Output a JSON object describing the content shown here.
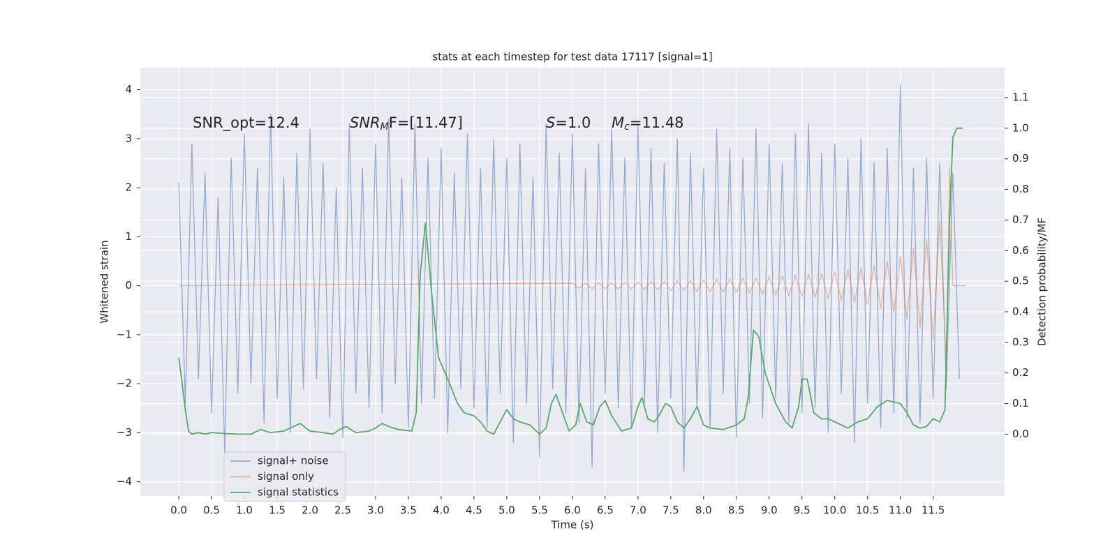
{
  "chart_data": {
    "type": "line",
    "title": "stats at each timestep for test data 17117 [signal=1]",
    "xlabel": "Time (s)",
    "ylabel": "Whitened strain",
    "y2label": "Detection probability/MF",
    "annotations": [
      {
        "text": "SNR_opt=12.4"
      },
      {
        "italic": "SNR",
        "sub": "M",
        "tail": "F=[11.47]"
      },
      {
        "italic": "S",
        "tail": "=1.0"
      },
      {
        "italic": "M",
        "sub": "c",
        "tail": "=11.48"
      }
    ],
    "xlim": [
      -0.586,
      12.589
    ],
    "ylim": [
      -4.29,
      4.45
    ],
    "y2lim": [
      -0.202,
      1.198
    ],
    "xticks": [
      {
        "value": 0,
        "label": "0.0"
      },
      0.5,
      {
        "value": 1,
        "label": "1.0"
      },
      1.5,
      {
        "value": 2,
        "label": "2.0"
      },
      2.5,
      {
        "value": 3,
        "label": "3.0"
      },
      3.5,
      {
        "value": 4,
        "label": "4.0"
      },
      4.5,
      {
        "value": 5,
        "label": "5.0"
      },
      5.5,
      {
        "value": 6,
        "label": "6.0"
      },
      6.5,
      {
        "value": 7,
        "label": "7.0"
      },
      7.5,
      {
        "value": 8,
        "label": "8.0"
      },
      8.5,
      {
        "value": 9,
        "label": "9.0"
      },
      9.5,
      {
        "value": 10,
        "label": "10.0"
      },
      10.5,
      {
        "value": 11,
        "label": "11.0"
      },
      11.5
    ],
    "yticks": [
      {
        "value": -4,
        "label": "−4"
      },
      {
        "value": -3,
        "label": "−3"
      },
      {
        "value": -2,
        "label": "−2"
      },
      {
        "value": -1,
        "label": "−1"
      },
      0,
      1,
      2,
      3,
      4
    ],
    "y2ticks": [
      {
        "value": 0,
        "label": "0.0"
      },
      0.1,
      0.2,
      0.3,
      0.4,
      0.5,
      0.6,
      0.7,
      0.8,
      0.9,
      {
        "value": 1,
        "label": "1.0"
      },
      1.1
    ],
    "grid": true,
    "legend": "lower left",
    "series": [
      {
        "name": "signal+ noise",
        "color": "#4c72b0",
        "axis": "y",
        "x": [
          0.0,
          0.1,
          0.2,
          0.3,
          0.4,
          0.5,
          0.6,
          0.7,
          0.8,
          0.9,
          1.0,
          1.1,
          1.2,
          1.3,
          1.4,
          1.5,
          1.6,
          1.7,
          1.8,
          1.9,
          2.0,
          2.1,
          2.2,
          2.3,
          2.4,
          2.5,
          2.6,
          2.7,
          2.8,
          2.9,
          3.0,
          3.1,
          3.2,
          3.3,
          3.4,
          3.5,
          3.6,
          3.7,
          3.8,
          3.9,
          4.0,
          4.1,
          4.2,
          4.3,
          4.4,
          4.5,
          4.6,
          4.7,
          4.8,
          4.9,
          5.0,
          5.1,
          5.2,
          5.3,
          5.4,
          5.5,
          5.6,
          5.7,
          5.8,
          5.9,
          6.0,
          6.1,
          6.2,
          6.3,
          6.4,
          6.5,
          6.6,
          6.7,
          6.8,
          6.9,
          7.0,
          7.1,
          7.2,
          7.3,
          7.4,
          7.5,
          7.6,
          7.7,
          7.8,
          7.9,
          8.0,
          8.1,
          8.2,
          8.3,
          8.4,
          8.5,
          8.6,
          8.7,
          8.8,
          8.9,
          9.0,
          9.1,
          9.2,
          9.3,
          9.4,
          9.5,
          9.6,
          9.7,
          9.8,
          9.9,
          10.0,
          10.1,
          10.2,
          10.3,
          10.4,
          10.5,
          10.6,
          10.7,
          10.8,
          10.9,
          11.0,
          11.1,
          11.2,
          11.3,
          11.4,
          11.5,
          11.6,
          11.7,
          11.8,
          11.9
        ],
        "values": [
          2.1,
          -2.4,
          2.9,
          -1.9,
          2.3,
          -2.6,
          1.8,
          -3.4,
          2.6,
          -2.2,
          3.1,
          -2.0,
          2.4,
          -2.8,
          3.5,
          -2.3,
          2.2,
          -3.0,
          2.7,
          -2.1,
          3.2,
          -1.9,
          2.5,
          -2.7,
          2.0,
          -3.1,
          3.3,
          -2.2,
          2.4,
          -2.5,
          2.9,
          -2.6,
          3.4,
          -2.0,
          2.2,
          -2.9,
          3.3,
          -2.4,
          2.6,
          -2.3,
          2.8,
          -3.0,
          2.3,
          -2.1,
          3.1,
          -2.5,
          2.4,
          -2.9,
          3.0,
          -2.2,
          2.6,
          -3.2,
          2.9,
          -2.4,
          2.2,
          -3.5,
          3.3,
          -2.1,
          2.7,
          -2.6,
          3.1,
          -2.8,
          2.4,
          -3.7,
          2.9,
          -2.2,
          3.2,
          -2.5,
          2.6,
          -2.9,
          3.3,
          -2.4,
          2.8,
          -3.0,
          2.5,
          -2.3,
          3.0,
          -3.8,
          2.7,
          -2.5,
          2.4,
          -2.9,
          3.2,
          -2.2,
          2.8,
          -3.1,
          2.6,
          -2.4,
          3.2,
          -2.7,
          2.9,
          -2.3,
          2.5,
          -2.8,
          3.1,
          -2.6,
          3.3,
          -2.5,
          2.7,
          -3.0,
          2.9,
          -2.2,
          2.6,
          -3.2,
          3.0,
          -2.4,
          2.5,
          -2.9,
          2.8,
          -2.6,
          4.1,
          -2.7,
          2.4,
          -2.8,
          2.6,
          -2.3,
          2.5,
          -2.1,
          2.3,
          -1.9
        ]
      },
      {
        "name": "signal only",
        "color": "#dd8452",
        "axis": "y",
        "x": [
          0.0,
          6.0,
          6.1,
          6.2,
          6.3,
          6.4,
          6.5,
          6.6,
          6.7,
          6.8,
          6.9,
          7.0,
          7.1,
          7.2,
          7.3,
          7.4,
          7.5,
          7.6,
          7.7,
          7.8,
          7.9,
          8.0,
          8.1,
          8.2,
          8.3,
          8.4,
          8.5,
          8.6,
          8.7,
          8.8,
          8.9,
          9.0,
          9.1,
          9.2,
          9.3,
          9.4,
          9.5,
          9.6,
          9.7,
          9.8,
          9.9,
          10.0,
          10.1,
          10.2,
          10.3,
          10.4,
          10.5,
          10.6,
          10.7,
          10.8,
          10.9,
          11.0,
          11.1,
          11.2,
          11.3,
          11.4,
          11.5,
          11.6,
          11.7,
          11.75,
          11.8,
          12.0
        ],
        "values": [
          0.0,
          0.05,
          -0.05,
          0.05,
          -0.06,
          0.06,
          -0.06,
          0.06,
          -0.07,
          0.07,
          -0.07,
          0.08,
          -0.08,
          0.09,
          -0.09,
          0.09,
          -0.1,
          0.1,
          -0.1,
          0.11,
          -0.11,
          0.12,
          -0.12,
          0.13,
          -0.13,
          0.14,
          -0.14,
          0.15,
          -0.15,
          0.16,
          -0.17,
          0.18,
          -0.19,
          0.2,
          -0.2,
          0.21,
          -0.22,
          0.23,
          -0.24,
          0.25,
          -0.26,
          0.28,
          -0.3,
          0.32,
          -0.34,
          0.36,
          -0.38,
          0.42,
          -0.46,
          0.5,
          -0.55,
          0.6,
          -0.68,
          0.76,
          -0.85,
          0.95,
          -1.1,
          1.35,
          -1.6,
          2.4,
          0.0,
          0.0
        ]
      },
      {
        "name": "signal statistics",
        "color": "#55a868",
        "axis": "y2",
        "x": [
          0.0,
          0.05,
          0.1,
          0.15,
          0.2,
          0.3,
          0.4,
          0.5,
          0.7,
          0.9,
          1.1,
          1.25,
          1.4,
          1.6,
          1.7,
          1.85,
          2.0,
          2.2,
          2.35,
          2.45,
          2.55,
          2.7,
          2.9,
          3.0,
          3.1,
          3.2,
          3.35,
          3.55,
          3.62,
          3.68,
          3.76,
          3.86,
          3.96,
          4.1,
          4.25,
          4.35,
          4.5,
          4.6,
          4.7,
          4.8,
          4.9,
          5.0,
          5.1,
          5.2,
          5.35,
          5.5,
          5.6,
          5.68,
          5.75,
          5.85,
          5.95,
          6.05,
          6.12,
          6.22,
          6.32,
          6.42,
          6.5,
          6.6,
          6.75,
          6.9,
          7.0,
          7.06,
          7.15,
          7.25,
          7.32,
          7.42,
          7.5,
          7.6,
          7.7,
          7.8,
          7.9,
          8.0,
          8.1,
          8.3,
          8.5,
          8.62,
          8.68,
          8.76,
          8.84,
          8.94,
          9.1,
          9.25,
          9.35,
          9.45,
          9.5,
          9.58,
          9.68,
          9.8,
          9.9,
          10.1,
          10.2,
          10.35,
          10.5,
          10.65,
          10.8,
          11.0,
          11.1,
          11.2,
          11.3,
          11.4,
          11.5,
          11.6,
          11.68,
          11.75,
          11.8,
          11.86,
          11.95
        ],
        "values": [
          0.25,
          0.17,
          0.08,
          0.01,
          0.0,
          0.005,
          0.0,
          0.005,
          0.002,
          0.0,
          0.0,
          0.015,
          0.005,
          0.01,
          0.02,
          0.035,
          0.01,
          0.005,
          0.0,
          0.015,
          0.025,
          0.005,
          0.01,
          0.02,
          0.035,
          0.025,
          0.015,
          0.01,
          0.07,
          0.52,
          0.69,
          0.45,
          0.25,
          0.18,
          0.1,
          0.07,
          0.06,
          0.04,
          0.01,
          0.0,
          0.04,
          0.08,
          0.05,
          0.04,
          0.03,
          0.0,
          0.02,
          0.1,
          0.13,
          0.07,
          0.01,
          0.03,
          0.1,
          0.04,
          0.03,
          0.09,
          0.11,
          0.06,
          0.01,
          0.02,
          0.09,
          0.12,
          0.05,
          0.04,
          0.06,
          0.1,
          0.09,
          0.04,
          0.02,
          0.05,
          0.09,
          0.03,
          0.02,
          0.015,
          0.03,
          0.05,
          0.12,
          0.34,
          0.32,
          0.2,
          0.1,
          0.04,
          0.02,
          0.09,
          0.18,
          0.18,
          0.07,
          0.05,
          0.05,
          0.03,
          0.02,
          0.04,
          0.05,
          0.09,
          0.11,
          0.1,
          0.07,
          0.03,
          0.02,
          0.025,
          0.05,
          0.04,
          0.08,
          0.7,
          0.97,
          1.0,
          1.0
        ]
      }
    ]
  }
}
